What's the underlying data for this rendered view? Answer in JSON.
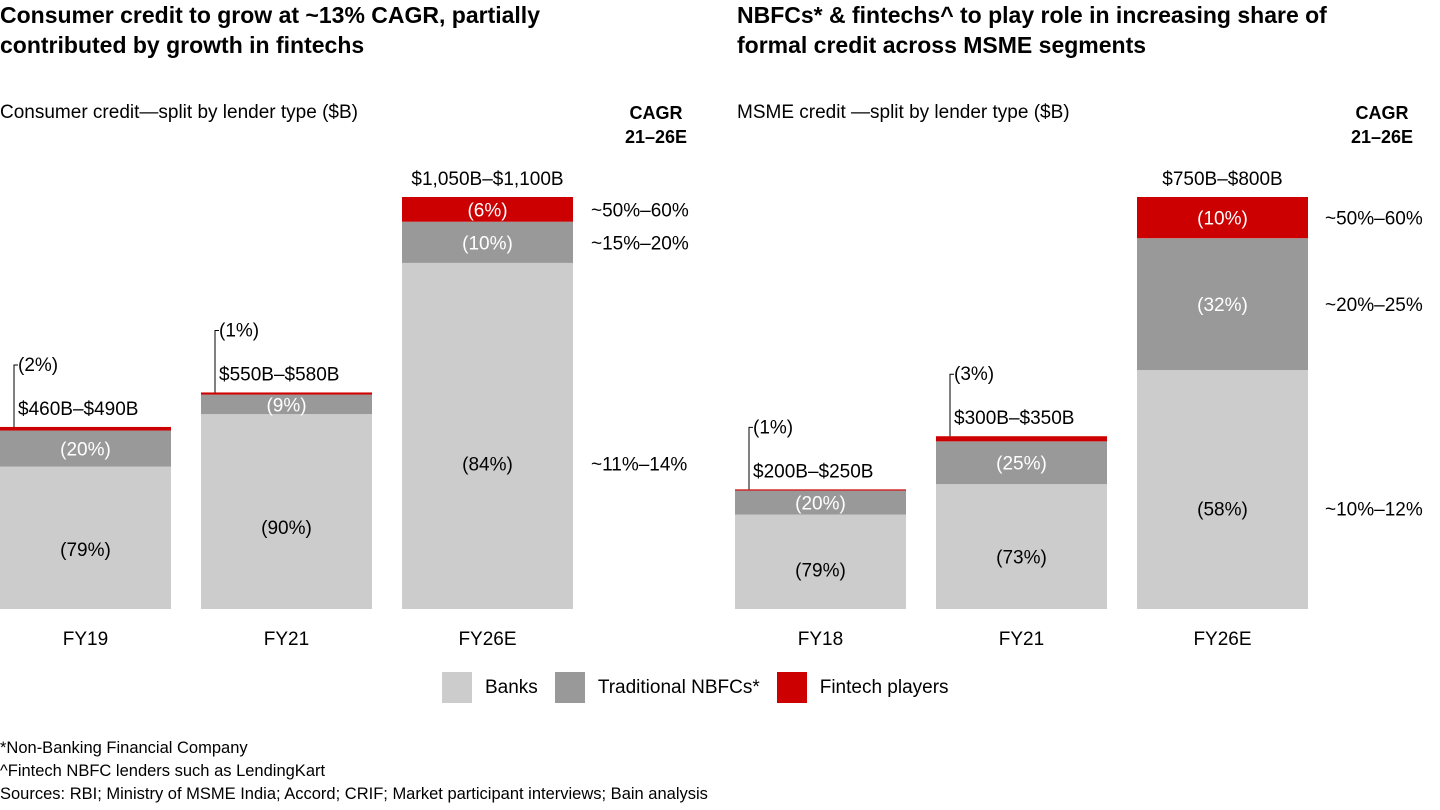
{
  "colors": {
    "banks": "#cccccc",
    "nbfc": "#999999",
    "fintech": "#cc0000"
  },
  "legend": [
    {
      "key": "banks",
      "label": "Banks"
    },
    {
      "key": "nbfc",
      "label": "Traditional NBFCs*"
    },
    {
      "key": "fintech",
      "label": "Fintech players"
    }
  ],
  "footnotes": [
    "*Non-Banking Financial Company",
    "^Fintech NBFC lenders such as LendingKart",
    "Sources: RBI; Ministry of MSME India; Accord; CRIF; Market participant interviews; Bain analysis"
  ],
  "cagr_header": {
    "line1": "CAGR",
    "line2": "21–26E"
  },
  "chart_data": [
    {
      "type": "bar",
      "stacked": true,
      "title": "Consumer credit to grow at ~13% CAGR, partially contributed by growth in fintechs",
      "title_lines": [
        "Consumer credit to grow at ~13% CAGR, partially",
        "contributed by growth in fintechs"
      ],
      "subtitle": "Consumer credit—split by lender type ($B)",
      "categories": [
        "FY19",
        "FY21",
        "FY26E"
      ],
      "totals_label": [
        "$460B–$490B",
        "$550B–$580B",
        "$1,050B–$1,100B"
      ],
      "totals_midpoint": [
        475,
        565,
        1075
      ],
      "series": [
        {
          "name": "Banks",
          "key": "banks",
          "shares": [
            79,
            90,
            84
          ],
          "labels": [
            "(79%)",
            "(90%)",
            "(84%)"
          ]
        },
        {
          "name": "Traditional NBFCs*",
          "key": "nbfc",
          "shares": [
            20,
            9,
            10
          ],
          "labels": [
            "(20%)",
            "(9%)",
            "(10%)"
          ]
        },
        {
          "name": "Fintech players",
          "key": "fintech",
          "shares": [
            2,
            1,
            6
          ],
          "labels": [
            "(2%)",
            "(1%)",
            "(6%)"
          ]
        }
      ],
      "cagr": [
        "~11%–14%",
        "~15%–20%",
        "~50%–60%"
      ],
      "ylim": [
        0,
        1100
      ]
    },
    {
      "type": "bar",
      "stacked": true,
      "title": "NBFCs* & fintechs^ to play role in increasing share of formal credit across MSME segments",
      "title_lines": [
        "NBFCs* & fintechs^ to play role in increasing share of",
        "formal credit across MSME segments"
      ],
      "subtitle": "MSME credit —split by lender type ($B)",
      "categories": [
        "FY18",
        "FY21",
        "FY26E"
      ],
      "totals_label": [
        "$200B–$250B",
        "$300B–$350B",
        "$750B–$800B"
      ],
      "totals_midpoint": [
        225,
        325,
        775
      ],
      "series": [
        {
          "name": "Banks",
          "key": "banks",
          "shares": [
            79,
            73,
            58
          ],
          "labels": [
            "(79%)",
            "(73%)",
            "(58%)"
          ]
        },
        {
          "name": "Traditional NBFCs*",
          "key": "nbfc",
          "shares": [
            20,
            25,
            32
          ],
          "labels": [
            "(20%)",
            "(25%)",
            "(32%)"
          ]
        },
        {
          "name": "Fintech players",
          "key": "fintech",
          "shares": [
            1,
            3,
            10
          ],
          "labels": [
            "(1%)",
            "(3%)",
            "(10%)"
          ]
        }
      ],
      "cagr": [
        "~10%–12%",
        "~20%–25%",
        "~50%–60%"
      ],
      "ylim": [
        0,
        800
      ]
    }
  ]
}
